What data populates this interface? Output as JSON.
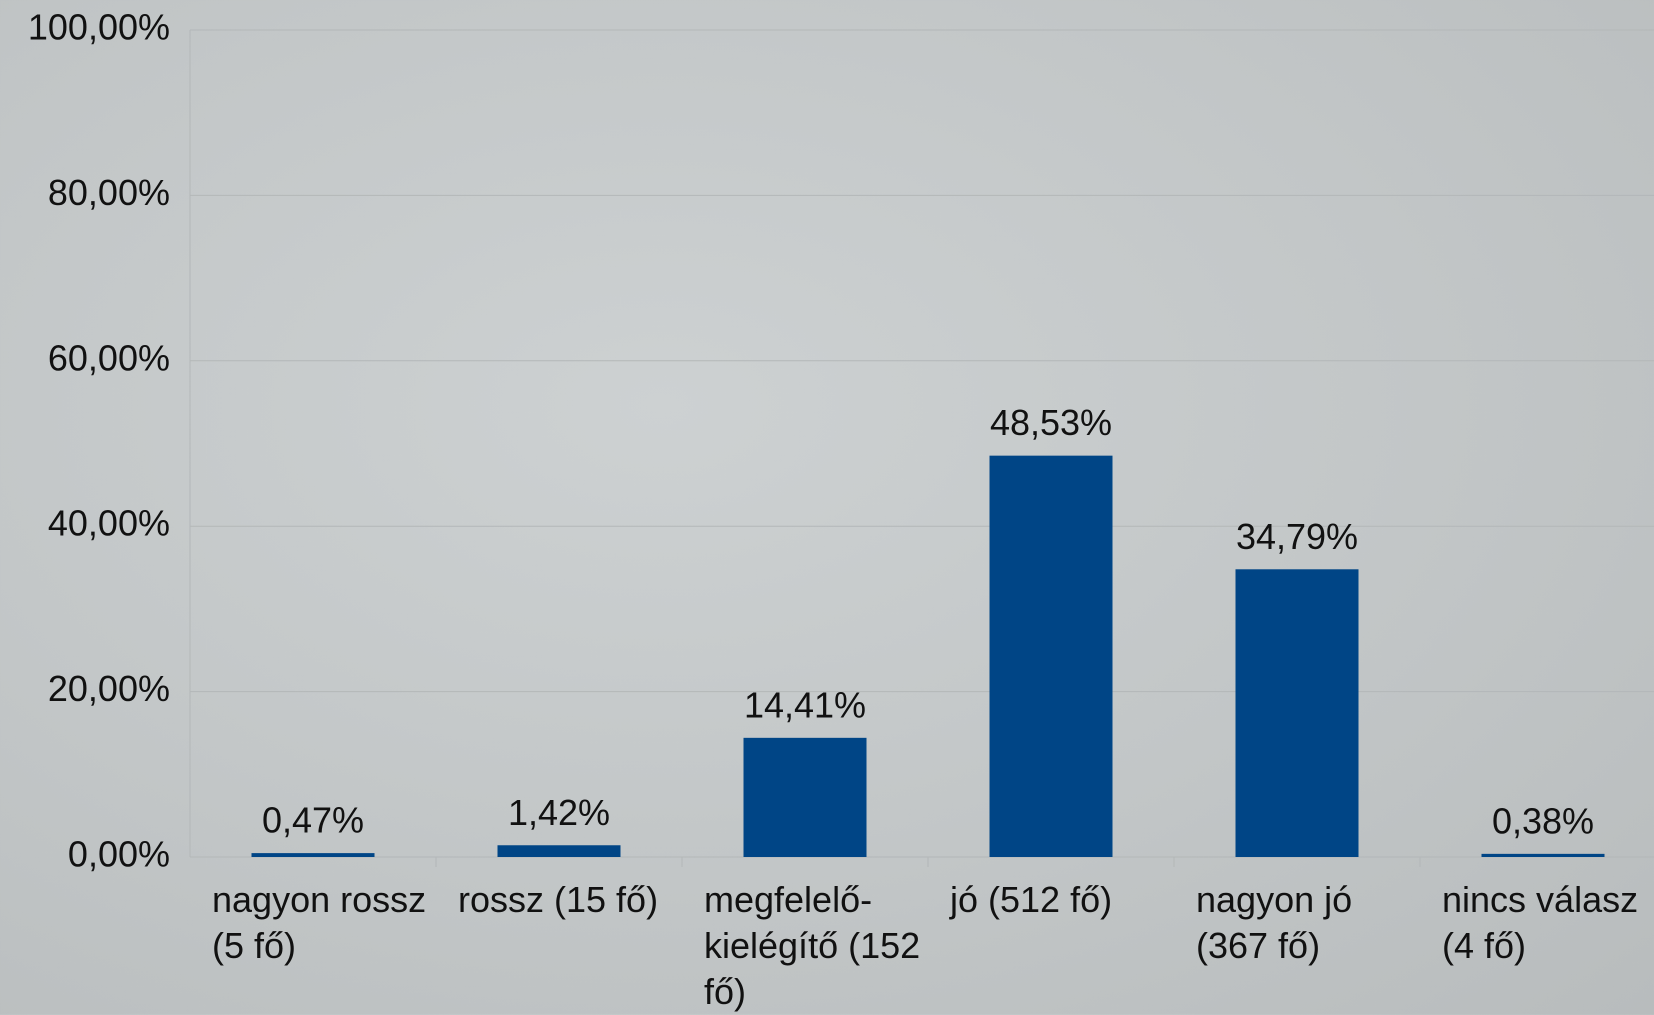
{
  "chart_data": {
    "type": "bar",
    "categories": [
      "nagyon rossz (5 fő)",
      "rossz (15 fő)",
      "megfelelő-kielégítő (152 fő)",
      "jó (512 fő)",
      "nagyon jó (367 fő)",
      "nincs válasz (4 fő)"
    ],
    "values": [
      0.47,
      1.42,
      14.41,
      48.53,
      34.79,
      0.38
    ],
    "value_labels": [
      "0,47%",
      "1,42%",
      "14,41%",
      "48,53%",
      "34,79%",
      "0,38%"
    ],
    "color": "#004586",
    "ylim": [
      0,
      100
    ],
    "yticks": [
      {
        "value": 0,
        "label": "0,00%"
      },
      {
        "value": 20,
        "label": "20,00%"
      },
      {
        "value": 40,
        "label": "40,00%"
      },
      {
        "value": 60,
        "label": "60,00%"
      },
      {
        "value": 80,
        "label": "80,00%"
      },
      {
        "value": 100,
        "label": "100,00%"
      }
    ],
    "grid": true
  }
}
